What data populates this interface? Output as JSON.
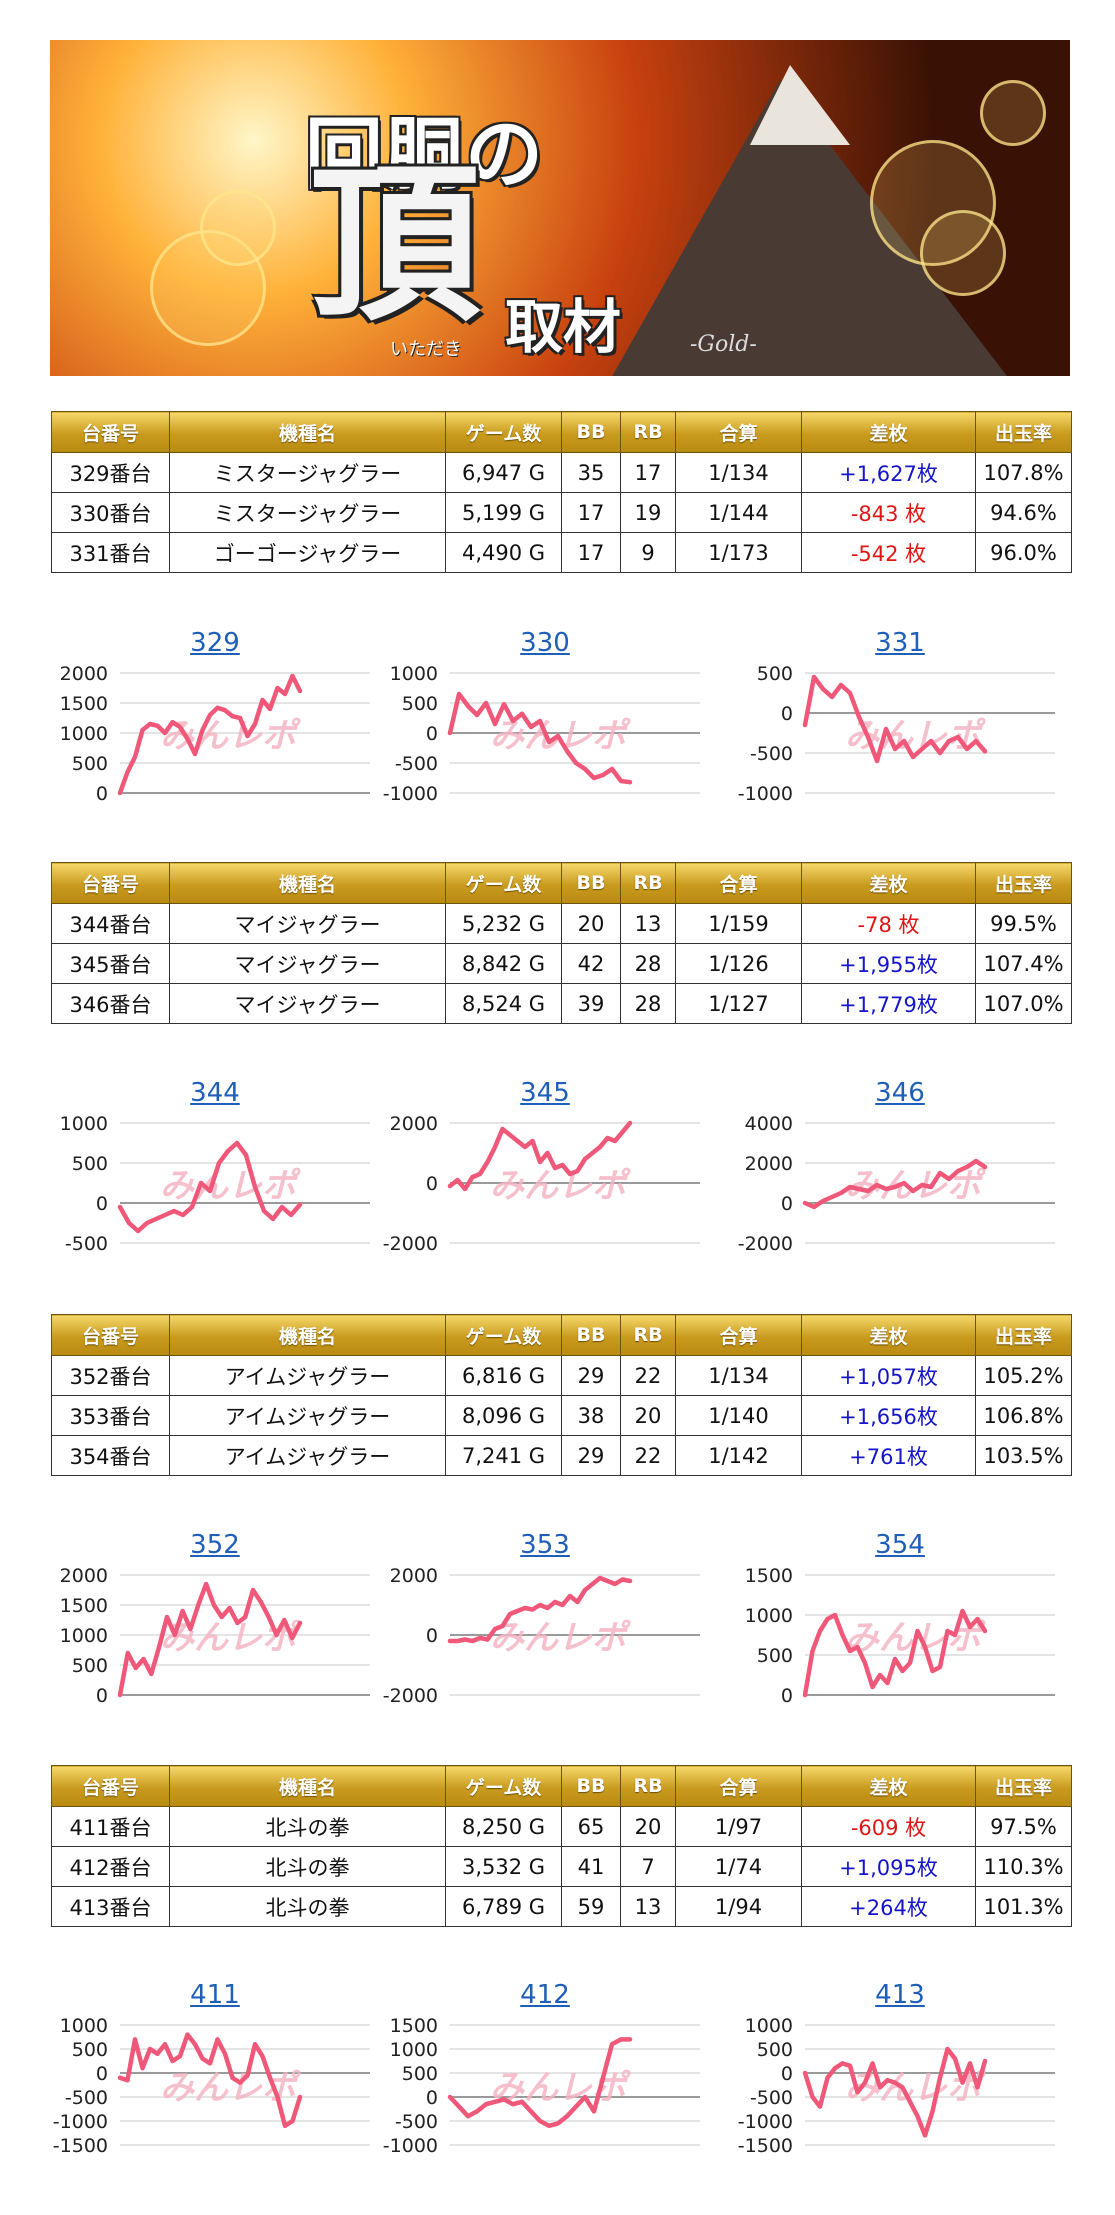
{
  "banner": {
    "line1": "回胴の",
    "big": "頂",
    "sub": "取材",
    "ruby": "いただき",
    "gold": "-Gold-"
  },
  "headers": [
    "台番号",
    "機種名",
    "ゲーム数",
    "BB",
    "RB",
    "合算",
    "差枚",
    "出玉率"
  ],
  "watermark": "みんレポ",
  "colors": {
    "line": "#f0587a",
    "positive": "#1515c8",
    "negative": "#e01616",
    "title": "#1f5fb8",
    "header_gold": "#c89a1e"
  },
  "groups": [
    {
      "rows": [
        {
          "no": "329番台",
          "model": "ミスタージャグラー",
          "games": "6,947 G",
          "bb": "35",
          "rb": "17",
          "total": "1/134",
          "diff": "+1,627枚",
          "rate": "107.8%",
          "sign": "pos"
        },
        {
          "no": "330番台",
          "model": "ミスタージャグラー",
          "games": "5,199 G",
          "bb": "17",
          "rb": "19",
          "total": "1/144",
          "diff": "-843 枚",
          "rate": "94.6%",
          "sign": "neg"
        },
        {
          "no": "331番台",
          "model": "ゴーゴージャグラー",
          "games": "4,490 G",
          "bb": "17",
          "rb": "9",
          "total": "1/173",
          "diff": "-542 枚",
          "rate": "96.0%",
          "sign": "neg"
        }
      ],
      "charts": [
        {
          "title": "329",
          "yticks": [
            "2000",
            "1500",
            "1000",
            "500",
            "0"
          ],
          "ymin": 0,
          "ymax": 2000
        },
        {
          "title": "330",
          "yticks": [
            "1000",
            "500",
            "0",
            "-500",
            "-1000"
          ],
          "ymin": -1000,
          "ymax": 1000
        },
        {
          "title": "331",
          "yticks": [
            "500",
            "0",
            "-500",
            "-1000"
          ],
          "ymin": -1000,
          "ymax": 500
        }
      ]
    },
    {
      "rows": [
        {
          "no": "344番台",
          "model": "マイジャグラー",
          "games": "5,232 G",
          "bb": "20",
          "rb": "13",
          "total": "1/159",
          "diff": "-78 枚",
          "rate": "99.5%",
          "sign": "neg"
        },
        {
          "no": "345番台",
          "model": "マイジャグラー",
          "games": "8,842 G",
          "bb": "42",
          "rb": "28",
          "total": "1/126",
          "diff": "+1,955枚",
          "rate": "107.4%",
          "sign": "pos"
        },
        {
          "no": "346番台",
          "model": "マイジャグラー",
          "games": "8,524 G",
          "bb": "39",
          "rb": "28",
          "total": "1/127",
          "diff": "+1,779枚",
          "rate": "107.0%",
          "sign": "pos"
        }
      ],
      "charts": [
        {
          "title": "344",
          "yticks": [
            "1000",
            "500",
            "0",
            "-500"
          ],
          "ymin": -500,
          "ymax": 1000
        },
        {
          "title": "345",
          "yticks": [
            "2000",
            "0",
            "-2000"
          ],
          "ymin": -2000,
          "ymax": 2000
        },
        {
          "title": "346",
          "yticks": [
            "4000",
            "2000",
            "0",
            "-2000"
          ],
          "ymin": -2000,
          "ymax": 4000
        }
      ]
    },
    {
      "rows": [
        {
          "no": "352番台",
          "model": "アイムジャグラー",
          "games": "6,816 G",
          "bb": "29",
          "rb": "22",
          "total": "1/134",
          "diff": "+1,057枚",
          "rate": "105.2%",
          "sign": "pos"
        },
        {
          "no": "353番台",
          "model": "アイムジャグラー",
          "games": "8,096 G",
          "bb": "38",
          "rb": "20",
          "total": "1/140",
          "diff": "+1,656枚",
          "rate": "106.8%",
          "sign": "pos"
        },
        {
          "no": "354番台",
          "model": "アイムジャグラー",
          "games": "7,241 G",
          "bb": "29",
          "rb": "22",
          "total": "1/142",
          "diff": "+761枚",
          "rate": "103.5%",
          "sign": "pos"
        }
      ],
      "charts": [
        {
          "title": "352",
          "yticks": [
            "2000",
            "1500",
            "1000",
            "500",
            "0"
          ],
          "ymin": 0,
          "ymax": 2000
        },
        {
          "title": "353",
          "yticks": [
            "2000",
            "0",
            "-2000"
          ],
          "ymin": -2000,
          "ymax": 2000
        },
        {
          "title": "354",
          "yticks": [
            "1500",
            "1000",
            "500",
            "0"
          ],
          "ymin": 0,
          "ymax": 1500
        }
      ]
    },
    {
      "rows": [
        {
          "no": "411番台",
          "model": "北斗の拳",
          "games": "8,250 G",
          "bb": "65",
          "rb": "20",
          "total": "1/97",
          "diff": "-609 枚",
          "rate": "97.5%",
          "sign": "neg"
        },
        {
          "no": "412番台",
          "model": "北斗の拳",
          "games": "3,532 G",
          "bb": "41",
          "rb": "7",
          "total": "1/74",
          "diff": "+1,095枚",
          "rate": "110.3%",
          "sign": "pos"
        },
        {
          "no": "413番台",
          "model": "北斗の拳",
          "games": "6,789 G",
          "bb": "59",
          "rb": "13",
          "total": "1/94",
          "diff": "+264枚",
          "rate": "101.3%",
          "sign": "pos"
        }
      ],
      "charts": [
        {
          "title": "411",
          "yticks": [
            "1000",
            "500",
            "0",
            "-500",
            "-1000",
            "-1500"
          ],
          "ymin": -1500,
          "ymax": 1000
        },
        {
          "title": "412",
          "yticks": [
            "1500",
            "1000",
            "500",
            "0",
            "-500",
            "-1000"
          ],
          "ymin": -1000,
          "ymax": 1500
        },
        {
          "title": "413",
          "yticks": [
            "1000",
            "500",
            "0",
            "-500",
            "-1000",
            "-1500"
          ],
          "ymin": -1500,
          "ymax": 1000
        }
      ]
    }
  ],
  "chart_data": [
    {
      "type": "line",
      "title": "329",
      "x": [
        0,
        1,
        2,
        3,
        4,
        5,
        6,
        7,
        8,
        9,
        10,
        11,
        12,
        13,
        14,
        15,
        16,
        17,
        18,
        19,
        20,
        21,
        22,
        23,
        24
      ],
      "y": [
        0,
        350,
        600,
        1050,
        1150,
        1120,
        1000,
        1180,
        1100,
        900,
        650,
        1050,
        1300,
        1420,
        1380,
        1280,
        1250,
        950,
        1150,
        1550,
        1400,
        1750,
        1650,
        1950,
        1700
      ],
      "ylim": [
        0,
        2000
      ],
      "yticks": [
        0,
        500,
        1000,
        1500,
        2000
      ]
    },
    {
      "type": "line",
      "title": "330",
      "x": [
        0,
        1,
        2,
        3,
        4,
        5,
        6,
        7,
        8,
        9,
        10,
        11,
        12,
        13,
        14,
        15,
        16,
        17,
        18,
        19,
        20
      ],
      "y": [
        0,
        650,
        450,
        300,
        500,
        150,
        480,
        200,
        320,
        100,
        200,
        -150,
        -50,
        -300,
        -500,
        -600,
        -750,
        -700,
        -600,
        -800,
        -820
      ],
      "ylim": [
        -1000,
        1000
      ],
      "yticks": [
        -1000,
        -500,
        0,
        500,
        1000
      ]
    },
    {
      "type": "line",
      "title": "331",
      "x": [
        0,
        1,
        2,
        3,
        4,
        5,
        6,
        7,
        8,
        9,
        10,
        11,
        12,
        13,
        14,
        15,
        16,
        17,
        18,
        19,
        20
      ],
      "y": [
        -150,
        450,
        300,
        200,
        350,
        250,
        -50,
        -300,
        -600,
        -200,
        -450,
        -350,
        -550,
        -450,
        -350,
        -500,
        -350,
        -300,
        -450,
        -350,
        -480
      ],
      "ylim": [
        -1000,
        500
      ],
      "yticks": [
        -1000,
        -500,
        0,
        500
      ]
    },
    {
      "type": "line",
      "title": "344",
      "x": [
        0,
        1,
        2,
        3,
        4,
        5,
        6,
        7,
        8,
        9,
        10,
        11,
        12,
        13,
        14,
        15,
        16,
        17,
        18,
        19,
        20
      ],
      "y": [
        -50,
        -250,
        -350,
        -250,
        -200,
        -150,
        -100,
        -150,
        -50,
        250,
        150,
        500,
        650,
        750,
        600,
        200,
        -100,
        -200,
        -50,
        -150,
        -20
      ],
      "ylim": [
        -500,
        1000
      ],
      "yticks": [
        -500,
        0,
        500,
        1000
      ]
    },
    {
      "type": "line",
      "title": "345",
      "x": [
        0,
        1,
        2,
        3,
        4,
        5,
        6,
        7,
        8,
        9,
        10,
        11,
        12,
        13,
        14,
        15,
        16,
        17,
        18,
        19,
        20,
        21,
        22,
        23,
        24
      ],
      "y": [
        -100,
        100,
        -200,
        200,
        300,
        700,
        1200,
        1800,
        1600,
        1400,
        1200,
        1400,
        700,
        1000,
        500,
        600,
        300,
        400,
        800,
        1000,
        1200,
        1500,
        1400,
        1700,
        2000
      ],
      "ylim": [
        -2000,
        2000
      ],
      "yticks": [
        -2000,
        0,
        2000
      ]
    },
    {
      "type": "line",
      "title": "346",
      "x": [
        0,
        1,
        2,
        3,
        4,
        5,
        6,
        7,
        8,
        9,
        10,
        11,
        12,
        13,
        14,
        15,
        16,
        17,
        18,
        19,
        20
      ],
      "y": [
        0,
        -200,
        100,
        300,
        500,
        800,
        700,
        600,
        900,
        700,
        800,
        1000,
        600,
        900,
        800,
        1500,
        1200,
        1600,
        1800,
        2100,
        1800
      ],
      "ylim": [
        -2000,
        4000
      ],
      "yticks": [
        -2000,
        0,
        2000,
        4000
      ]
    },
    {
      "type": "line",
      "title": "352",
      "x": [
        0,
        1,
        2,
        3,
        4,
        5,
        6,
        7,
        8,
        9,
        10,
        11,
        12,
        13,
        14,
        15,
        16,
        17,
        18,
        19,
        20,
        21,
        22,
        23
      ],
      "y": [
        0,
        700,
        450,
        600,
        350,
        800,
        1300,
        1000,
        1400,
        1100,
        1500,
        1850,
        1500,
        1300,
        1450,
        1200,
        1300,
        1750,
        1550,
        1300,
        1000,
        1250,
        950,
        1200
      ],
      "ylim": [
        0,
        2000
      ],
      "yticks": [
        0,
        500,
        1000,
        1500,
        2000
      ]
    },
    {
      "type": "line",
      "title": "353",
      "x": [
        0,
        1,
        2,
        3,
        4,
        5,
        6,
        7,
        8,
        9,
        10,
        11,
        12,
        13,
        14,
        15,
        16,
        17,
        18,
        19,
        20,
        21,
        22,
        23,
        24
      ],
      "y": [
        -200,
        -200,
        -150,
        -200,
        -100,
        -150,
        200,
        300,
        700,
        800,
        900,
        850,
        1000,
        900,
        1100,
        1000,
        1300,
        1100,
        1500,
        1700,
        1900,
        1800,
        1700,
        1850,
        1800
      ],
      "ylim": [
        -2000,
        2000
      ],
      "yticks": [
        -2000,
        0,
        2000
      ]
    },
    {
      "type": "line",
      "title": "354",
      "x": [
        0,
        1,
        2,
        3,
        4,
        5,
        6,
        7,
        8,
        9,
        10,
        11,
        12,
        13,
        14,
        15,
        16,
        17,
        18,
        19,
        20,
        21,
        22,
        23,
        24
      ],
      "y": [
        0,
        550,
        800,
        950,
        1000,
        750,
        550,
        600,
        400,
        100,
        250,
        150,
        450,
        300,
        400,
        800,
        600,
        300,
        350,
        800,
        750,
        1050,
        850,
        950,
        800
      ],
      "ylim": [
        0,
        1500
      ],
      "yticks": [
        0,
        500,
        1000,
        1500
      ]
    },
    {
      "type": "line",
      "title": "411",
      "x": [
        0,
        1,
        2,
        3,
        4,
        5,
        6,
        7,
        8,
        9,
        10,
        11,
        12,
        13,
        14,
        15,
        16,
        17,
        18,
        19,
        20,
        21,
        22,
        23,
        24
      ],
      "y": [
        -100,
        -150,
        700,
        100,
        500,
        400,
        600,
        250,
        350,
        800,
        600,
        300,
        200,
        700,
        400,
        -100,
        -200,
        -50,
        600,
        350,
        -100,
        -500,
        -1100,
        -1000,
        -500
      ],
      "ylim": [
        -1500,
        1000
      ],
      "yticks": [
        -1500,
        -1000,
        -500,
        0,
        500,
        1000
      ]
    },
    {
      "type": "line",
      "title": "412",
      "x": [
        0,
        1,
        2,
        3,
        4,
        5,
        6,
        7,
        8,
        9,
        10,
        11,
        12,
        13,
        14,
        15,
        16,
        17,
        18,
        19,
        20
      ],
      "y": [
        0,
        -200,
        -400,
        -300,
        -150,
        -100,
        -50,
        -150,
        -100,
        -300,
        -500,
        -600,
        -550,
        -400,
        -200,
        0,
        -300,
        400,
        1100,
        1200,
        1200
      ],
      "ylim": [
        -1000,
        1500
      ],
      "yticks": [
        -1000,
        -500,
        0,
        500,
        1000,
        1500
      ]
    },
    {
      "type": "line",
      "title": "413",
      "x": [
        0,
        1,
        2,
        3,
        4,
        5,
        6,
        7,
        8,
        9,
        10,
        11,
        12,
        13,
        14,
        15,
        16,
        17,
        18,
        19,
        20,
        21,
        22,
        23,
        24
      ],
      "y": [
        0,
        -500,
        -700,
        -100,
        100,
        200,
        150,
        -400,
        -200,
        200,
        -300,
        -150,
        -200,
        -300,
        -600,
        -900,
        -1300,
        -800,
        -100,
        500,
        300,
        -200,
        200,
        -300,
        250
      ],
      "ylim": [
        -1500,
        1000
      ],
      "yticks": [
        -1500,
        -1000,
        -500,
        0,
        500,
        1000
      ]
    }
  ]
}
